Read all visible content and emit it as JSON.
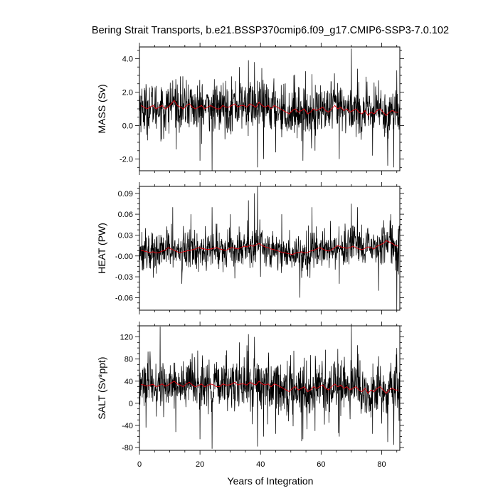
{
  "chart_data": {
    "type": "line",
    "title": "Bering Strait Transports, b.e21.BSSP370cmip6.f09_g17.CMIP6-SSP3-7.0.102",
    "xlabel": "Years of Integration",
    "xlim": [
      0,
      86
    ],
    "x_ticks": [
      0,
      20,
      40,
      60,
      80
    ],
    "x_tick_labels": [
      "0",
      "20",
      "40",
      "60",
      "80"
    ],
    "panels": [
      {
        "ylabel": "MASS (Sv)",
        "ylim": [
          -2.7,
          4.7
        ],
        "y_ticks": [
          -2,
          0,
          2,
          4
        ],
        "y_tick_labels": [
          "-2.0",
          "0.0",
          "2.0",
          "4.0"
        ],
        "monthly_mean": 1.05,
        "monthly_spread": 0.75,
        "spikes": [
          [
            1.5,
            -0.2
          ],
          [
            8,
            -0.8
          ],
          [
            17,
            2.2
          ],
          [
            20,
            -2.1
          ],
          [
            24,
            -2.7
          ],
          [
            33,
            3.5
          ],
          [
            36,
            3.9
          ],
          [
            38,
            3.8
          ],
          [
            39,
            -2.5
          ],
          [
            41,
            -2.0
          ],
          [
            45,
            -1.6
          ],
          [
            51,
            3.0
          ],
          [
            54,
            -2.1
          ],
          [
            58,
            -1.5
          ],
          [
            66,
            -2.0
          ],
          [
            70,
            4.6
          ],
          [
            72,
            3.4
          ],
          [
            77,
            -1.8
          ],
          [
            79,
            2.7
          ],
          [
            82,
            -2.4
          ],
          [
            84,
            -2.5
          ],
          [
            85,
            3.3
          ]
        ],
        "annual_mean": [
          1.2,
          1.1,
          1.0,
          1.1,
          1.2,
          1.0,
          1.1,
          1.2,
          1.0,
          1.1,
          1.3,
          1.5,
          1.2,
          1.1,
          1.0,
          1.2,
          1.3,
          1.1,
          1.0,
          1.1,
          1.2,
          1.0,
          1.1,
          1.2,
          1.1,
          1.0,
          1.0,
          1.2,
          1.1,
          1.1,
          1.2,
          1.3,
          1.1,
          1.2,
          1.2,
          1.1,
          1.3,
          1.2,
          1.1,
          1.4,
          1.2,
          1.1,
          1.2,
          1.0,
          1.2,
          1.1,
          1.0,
          0.9,
          0.8,
          0.7,
          0.9,
          1.0,
          0.8,
          0.9,
          1.0,
          0.7,
          0.8,
          1.0,
          0.9,
          1.0,
          1.1,
          0.9,
          0.8,
          1.0,
          1.2,
          1.0,
          1.1,
          0.9,
          1.0,
          0.8,
          0.9,
          1.0,
          0.8,
          0.7,
          0.9,
          0.6,
          0.8,
          0.7,
          0.9,
          1.0,
          0.8,
          0.6,
          0.8,
          0.9,
          0.8,
          0.8
        ]
      },
      {
        "ylabel": "HEAT (PW)",
        "ylim": [
          -0.078,
          0.1
        ],
        "y_ticks": [
          -0.06,
          -0.03,
          0.0,
          0.03,
          0.06,
          0.09
        ],
        "y_tick_labels": [
          "-0.06",
          "-0.03",
          "-0.00",
          "0.03",
          "0.06",
          "0.09"
        ],
        "monthly_mean": 0.008,
        "monthly_spread": 0.014,
        "spikes": [
          [
            2,
            0.04
          ],
          [
            11,
            0.07
          ],
          [
            14,
            -0.04
          ],
          [
            17,
            0.06
          ],
          [
            24,
            0.07
          ],
          [
            30,
            0.06
          ],
          [
            36,
            0.08
          ],
          [
            38,
            0.09
          ],
          [
            39,
            0.1
          ],
          [
            40,
            -0.03
          ],
          [
            47,
            0.06
          ],
          [
            53,
            -0.06
          ],
          [
            57,
            0.07
          ],
          [
            66,
            -0.04
          ],
          [
            70,
            0.075
          ],
          [
            72,
            0.07
          ],
          [
            79,
            -0.05
          ],
          [
            83,
            0.06
          ],
          [
            85,
            -0.078
          ]
        ],
        "annual_mean": [
          0.008,
          0.007,
          0.006,
          0.005,
          0.006,
          0.004,
          0.005,
          0.007,
          0.008,
          0.012,
          0.01,
          0.008,
          0.006,
          0.005,
          0.006,
          0.007,
          0.008,
          0.009,
          0.01,
          0.012,
          0.011,
          0.01,
          0.009,
          0.01,
          0.011,
          0.012,
          0.01,
          0.009,
          0.008,
          0.01,
          0.012,
          0.011,
          0.01,
          0.012,
          0.014,
          0.013,
          0.015,
          0.014,
          0.016,
          0.018,
          0.015,
          0.013,
          0.012,
          0.01,
          0.009,
          0.008,
          0.006,
          0.005,
          0.004,
          0.003,
          0.002,
          0.004,
          0.005,
          0.006,
          0.004,
          0.005,
          0.007,
          0.008,
          0.01,
          0.012,
          0.01,
          0.008,
          0.007,
          0.009,
          0.012,
          0.015,
          0.013,
          0.012,
          0.011,
          0.012,
          0.014,
          0.012,
          0.01,
          0.009,
          0.011,
          0.013,
          0.012,
          0.01,
          0.014,
          0.016,
          0.018,
          0.022,
          0.02,
          0.018,
          0.015,
          0.014
        ]
      },
      {
        "ylabel": "SALT (Sv*ppt)",
        "ylim": [
          -85,
          140
        ],
        "y_ticks": [
          -80,
          -40,
          0,
          40,
          80,
          120
        ],
        "y_tick_labels": [
          "-80",
          "-40",
          "0",
          "40",
          "80",
          "120"
        ],
        "monthly_mean": 32,
        "monthly_spread": 24,
        "spikes": [
          [
            1.5,
            -5
          ],
          [
            8,
            -25
          ],
          [
            12,
            -52
          ],
          [
            17,
            75
          ],
          [
            20,
            -65
          ],
          [
            24,
            -82
          ],
          [
            33,
            110
          ],
          [
            36,
            125
          ],
          [
            38,
            120
          ],
          [
            39,
            -78
          ],
          [
            41,
            -60
          ],
          [
            45,
            -55
          ],
          [
            51,
            95
          ],
          [
            54,
            -65
          ],
          [
            58,
            -50
          ],
          [
            66,
            -60
          ],
          [
            70,
            140
          ],
          [
            72,
            105
          ],
          [
            77,
            -55
          ],
          [
            79,
            85
          ],
          [
            82,
            -70
          ],
          [
            84,
            -75
          ],
          [
            85,
            100
          ]
        ],
        "annual_mean": [
          34,
          33,
          31,
          33,
          34,
          30,
          32,
          35,
          31,
          33,
          37,
          40,
          35,
          33,
          30,
          35,
          38,
          33,
          30,
          32,
          35,
          30,
          32,
          35,
          33,
          30,
          30,
          35,
          33,
          33,
          35,
          38,
          33,
          35,
          35,
          33,
          38,
          35,
          33,
          40,
          35,
          33,
          35,
          30,
          35,
          33,
          30,
          27,
          24,
          21,
          27,
          30,
          24,
          27,
          30,
          21,
          24,
          30,
          27,
          30,
          33,
          27,
          24,
          30,
          35,
          30,
          33,
          27,
          30,
          24,
          27,
          30,
          24,
          21,
          27,
          18,
          24,
          21,
          27,
          30,
          24,
          18,
          24,
          27,
          24,
          24
        ]
      }
    ],
    "monthly_color": "#000000",
    "annual_color": "#e8000b"
  }
}
